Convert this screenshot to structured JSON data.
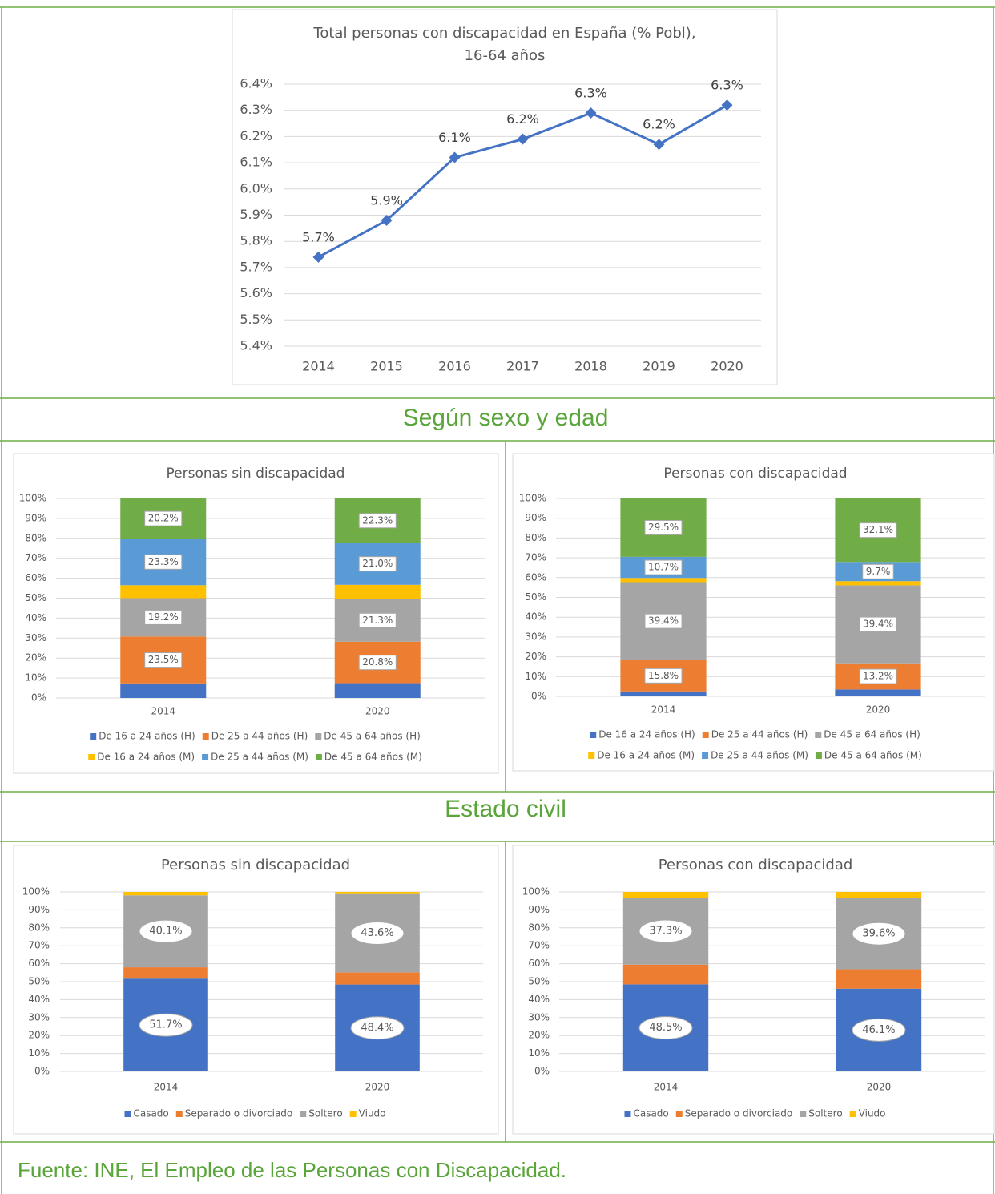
{
  "headings": [
    "Según sexo y edad",
    "Estado civil"
  ],
  "source": "Fuente: INE, El Empleo de las Personas con Discapacidad.",
  "chart_data": [
    {
      "type": "line",
      "title": [
        "Total personas con discapacidad en España (% Pobl),",
        "16-64 años"
      ],
      "categories": [
        "2014",
        "2015",
        "2016",
        "2017",
        "2018",
        "2019",
        "2020"
      ],
      "values": [
        5.74,
        5.88,
        6.12,
        6.19,
        6.29,
        6.17,
        6.32
      ],
      "value_labels": [
        "5.7%",
        "5.9%",
        "6.1%",
        "6.2%",
        "6.3%",
        "6.2%",
        "6.3%"
      ],
      "color": "#4472c4",
      "ylim": [
        5.4,
        6.4
      ],
      "yticks": [
        {
          "value": 5.4,
          "label": "5.4%"
        },
        {
          "value": 5.5,
          "label": "5.5%"
        },
        {
          "value": 5.6,
          "label": "5.6%"
        },
        {
          "value": 5.7,
          "label": "5.7%"
        },
        {
          "value": 5.8,
          "label": "5.8%"
        },
        {
          "value": 5.9,
          "label": "5.9%"
        },
        {
          "value": 6.0,
          "label": "6.0%"
        },
        {
          "value": 6.1,
          "label": "6.1%"
        },
        {
          "value": 6.2,
          "label": "6.2%"
        },
        {
          "value": 6.3,
          "label": "6.3%"
        },
        {
          "value": 6.4,
          "label": "6.4%"
        }
      ],
      "grid": true
    },
    {
      "type": "bar",
      "stacked": true,
      "label_style": "box",
      "title": "Personas sin discapacidad",
      "categories": [
        "2014",
        "2020"
      ],
      "series": [
        {
          "name": "De 16 a 24 años (H)",
          "color": "#4472c4",
          "values": [
            7.3,
            7.4
          ],
          "value_labels": [
            null,
            null
          ]
        },
        {
          "name": "De 25 a 44 años (H)",
          "color": "#ed7d31",
          "values": [
            23.5,
            20.8
          ],
          "value_labels": [
            "23.5%",
            "20.8%"
          ]
        },
        {
          "name": "De 45 a 64 años (H)",
          "color": "#a5a5a5",
          "values": [
            19.2,
            21.3
          ],
          "value_labels": [
            "19.2%",
            "21.3%"
          ]
        },
        {
          "name": "De 16 a 24 años (M)",
          "color": "#ffc000",
          "values": [
            6.5,
            7.2
          ],
          "value_labels": [
            null,
            null
          ]
        },
        {
          "name": "De 25 a 44 años (M)",
          "color": "#5b9bd5",
          "values": [
            23.3,
            21.0
          ],
          "value_labels": [
            "23.3%",
            "21.0%"
          ]
        },
        {
          "name": "De 45 a 64 años (M)",
          "color": "#70ad47",
          "values": [
            20.2,
            22.3
          ],
          "value_labels": [
            "20.2%",
            "22.3%"
          ]
        }
      ],
      "ylim": [
        0,
        100
      ],
      "yticks": [
        {
          "value": 0,
          "label": "0%"
        },
        {
          "value": 10,
          "label": "10%"
        },
        {
          "value": 20,
          "label": "20%"
        },
        {
          "value": 30,
          "label": "30%"
        },
        {
          "value": 40,
          "label": "40%"
        },
        {
          "value": 50,
          "label": "50%"
        },
        {
          "value": 60,
          "label": "60%"
        },
        {
          "value": 70,
          "label": "70%"
        },
        {
          "value": 80,
          "label": "80%"
        },
        {
          "value": 90,
          "label": "90%"
        },
        {
          "value": 100,
          "label": "100%"
        }
      ],
      "grid": true,
      "legend": "bottom"
    },
    {
      "type": "bar",
      "stacked": true,
      "label_style": "box",
      "title": "Personas con discapacidad",
      "categories": [
        "2014",
        "2020"
      ],
      "series": [
        {
          "name": "De 16 a 24 años (H)",
          "color": "#4472c4",
          "values": [
            2.5,
            3.5
          ],
          "value_labels": [
            null,
            null
          ]
        },
        {
          "name": "De 25 a 44 años (H)",
          "color": "#ed7d31",
          "values": [
            15.8,
            13.2
          ],
          "value_labels": [
            "15.8%",
            "13.2%"
          ]
        },
        {
          "name": "De 45 a 64 años (H)",
          "color": "#a5a5a5",
          "values": [
            39.4,
            39.4
          ],
          "value_labels": [
            "39.4%",
            "39.4%"
          ]
        },
        {
          "name": "De 16 a 24 años (M)",
          "color": "#ffc000",
          "values": [
            2.1,
            2.1
          ],
          "value_labels": [
            null,
            null
          ]
        },
        {
          "name": "De 25 a 44 años (M)",
          "color": "#5b9bd5",
          "values": [
            10.7,
            9.7
          ],
          "value_labels": [
            "10.7%",
            "9.7%"
          ]
        },
        {
          "name": "De 45 a 64 años (M)",
          "color": "#70ad47",
          "values": [
            29.5,
            32.1
          ],
          "value_labels": [
            "29.5%",
            "32.1%"
          ]
        }
      ],
      "ylim": [
        0,
        100
      ],
      "yticks": [
        {
          "value": 0,
          "label": "0%"
        },
        {
          "value": 10,
          "label": "10%"
        },
        {
          "value": 20,
          "label": "20%"
        },
        {
          "value": 30,
          "label": "30%"
        },
        {
          "value": 40,
          "label": "40%"
        },
        {
          "value": 50,
          "label": "50%"
        },
        {
          "value": 60,
          "label": "60%"
        },
        {
          "value": 70,
          "label": "70%"
        },
        {
          "value": 80,
          "label": "80%"
        },
        {
          "value": 90,
          "label": "90%"
        },
        {
          "value": 100,
          "label": "100%"
        }
      ],
      "grid": true,
      "legend": "bottom"
    },
    {
      "type": "bar",
      "stacked": true,
      "label_style": "ellipse",
      "title": "Personas sin discapacidad",
      "categories": [
        "2014",
        "2020"
      ],
      "series": [
        {
          "name": "Casado",
          "color": "#4472c4",
          "values": [
            51.7,
            48.4
          ],
          "value_labels": [
            "51.7%",
            "48.4%"
          ]
        },
        {
          "name": "Separado o divorciado",
          "color": "#ed7d31",
          "values": [
            6.3,
            6.8
          ],
          "value_labels": [
            null,
            null
          ]
        },
        {
          "name": "Soltero",
          "color": "#a5a5a5",
          "values": [
            40.1,
            43.6
          ],
          "value_labels": [
            "40.1%",
            "43.6%"
          ]
        },
        {
          "name": "Viudo",
          "color": "#ffc000",
          "values": [
            1.9,
            1.2
          ],
          "value_labels": [
            null,
            null
          ]
        }
      ],
      "ylim": [
        0,
        100
      ],
      "yticks": [
        {
          "value": 0,
          "label": "0%"
        },
        {
          "value": 10,
          "label": "10%"
        },
        {
          "value": 20,
          "label": "20%"
        },
        {
          "value": 30,
          "label": "30%"
        },
        {
          "value": 40,
          "label": "40%"
        },
        {
          "value": 50,
          "label": "50%"
        },
        {
          "value": 60,
          "label": "60%"
        },
        {
          "value": 70,
          "label": "70%"
        },
        {
          "value": 80,
          "label": "80%"
        },
        {
          "value": 90,
          "label": "90%"
        },
        {
          "value": 100,
          "label": "100%"
        }
      ],
      "grid": true,
      "legend": "bottom"
    },
    {
      "type": "bar",
      "stacked": true,
      "label_style": "ellipse",
      "title": "Personas con discapacidad",
      "categories": [
        "2014",
        "2020"
      ],
      "series": [
        {
          "name": "Casado",
          "color": "#4472c4",
          "values": [
            48.5,
            46.1
          ],
          "value_labels": [
            "48.5%",
            "46.1%"
          ]
        },
        {
          "name": "Separado o divorciado",
          "color": "#ed7d31",
          "values": [
            11.0,
            10.8
          ],
          "value_labels": [
            null,
            null
          ]
        },
        {
          "name": "Soltero",
          "color": "#a5a5a5",
          "values": [
            37.3,
            39.6
          ],
          "value_labels": [
            "37.3%",
            "39.6%"
          ]
        },
        {
          "name": "Viudo",
          "color": "#ffc000",
          "values": [
            3.2,
            3.5
          ],
          "value_labels": [
            null,
            null
          ]
        }
      ],
      "ylim": [
        0,
        100
      ],
      "yticks": [
        {
          "value": 0,
          "label": "0%"
        },
        {
          "value": 10,
          "label": "10%"
        },
        {
          "value": 20,
          "label": "20%"
        },
        {
          "value": 30,
          "label": "30%"
        },
        {
          "value": 40,
          "label": "40%"
        },
        {
          "value": 50,
          "label": "50%"
        },
        {
          "value": 60,
          "label": "60%"
        },
        {
          "value": 70,
          "label": "70%"
        },
        {
          "value": 80,
          "label": "80%"
        },
        {
          "value": 90,
          "label": "90%"
        },
        {
          "value": 100,
          "label": "100%"
        }
      ],
      "grid": true,
      "legend": "bottom"
    }
  ]
}
